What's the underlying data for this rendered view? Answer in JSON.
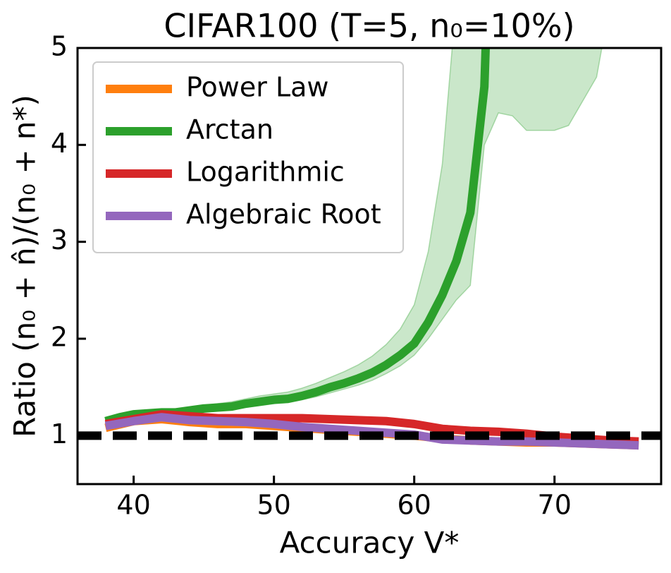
{
  "chart_data": {
    "type": "line",
    "title": "CIFAR100 (T=5, n₀=10%)",
    "xlabel": "Accuracy V*",
    "ylabel": "Ratio (n₀ + n̂)/(n₀ + n*)",
    "xlim": [
      36,
      77.6
    ],
    "ylim": [
      0.5,
      5
    ],
    "xticks": [
      40,
      50,
      60,
      70
    ],
    "yticks": [
      1,
      2,
      3,
      4,
      5
    ],
    "legend": "upper left",
    "hline": 1,
    "series": [
      {
        "name": "Power Law",
        "color": "#ff7f0e",
        "x": [
          38,
          40,
          42,
          44,
          46,
          48,
          50,
          52,
          54,
          56,
          58,
          60,
          62,
          64,
          66,
          68,
          70,
          72,
          74,
          76
        ],
        "values": [
          1.08,
          1.15,
          1.17,
          1.14,
          1.12,
          1.12,
          1.1,
          1.08,
          1.06,
          1.04,
          1.02,
          1.0,
          0.97,
          0.95,
          0.94,
          0.93,
          0.93,
          0.92,
          0.91,
          0.9
        ]
      },
      {
        "name": "Arctan",
        "color": "#2ca02c",
        "x": [
          38,
          39,
          40,
          41,
          42,
          43,
          44,
          45,
          46,
          47,
          48,
          49,
          50,
          51,
          52,
          53,
          54,
          55,
          56,
          57,
          58,
          59,
          60,
          61,
          62,
          63,
          64,
          65,
          66,
          67,
          68,
          69,
          70,
          71,
          72,
          73,
          74
        ],
        "values": [
          1.15,
          1.19,
          1.22,
          1.23,
          1.24,
          1.24,
          1.26,
          1.28,
          1.29,
          1.3,
          1.33,
          1.35,
          1.37,
          1.38,
          1.41,
          1.45,
          1.5,
          1.54,
          1.59,
          1.65,
          1.73,
          1.83,
          1.95,
          2.17,
          2.45,
          2.8,
          3.3,
          4.6,
          9,
          null,
          null,
          null,
          null,
          null,
          null,
          null,
          null
        ],
        "lower": [
          1.13,
          1.17,
          1.2,
          1.21,
          1.22,
          1.22,
          1.24,
          1.25,
          1.26,
          1.27,
          1.29,
          1.31,
          1.33,
          1.34,
          1.37,
          1.4,
          1.44,
          1.48,
          1.52,
          1.57,
          1.64,
          1.72,
          1.83,
          2.0,
          2.2,
          2.4,
          2.55,
          4.0,
          4.33,
          4.3,
          4.15,
          4.15,
          4.15,
          4.2,
          4.45,
          4.7,
          5.5
        ],
        "upper": [
          1.17,
          1.21,
          1.24,
          1.25,
          1.26,
          1.27,
          1.29,
          1.31,
          1.33,
          1.35,
          1.38,
          1.41,
          1.43,
          1.45,
          1.49,
          1.54,
          1.6,
          1.66,
          1.73,
          1.82,
          1.94,
          2.1,
          2.35,
          2.9,
          3.8,
          5.5,
          9,
          9,
          9,
          9,
          9,
          9,
          9,
          9,
          9,
          9,
          9
        ]
      },
      {
        "name": "Logarithmic",
        "color": "#d62728",
        "x": [
          38,
          40,
          42,
          44,
          46,
          48,
          50,
          52,
          54,
          56,
          58,
          60,
          62,
          64,
          66,
          68,
          70,
          72,
          74,
          76
        ],
        "values": [
          1.12,
          1.17,
          1.22,
          1.2,
          1.18,
          1.18,
          1.18,
          1.18,
          1.17,
          1.16,
          1.15,
          1.12,
          1.07,
          1.05,
          1.04,
          1.02,
          0.99,
          0.97,
          0.95,
          0.94
        ]
      },
      {
        "name": "Algebraic Root",
        "color": "#9467bd",
        "x": [
          38,
          40,
          42,
          44,
          46,
          48,
          50,
          52,
          54,
          56,
          58,
          60,
          62,
          64,
          66,
          68,
          70,
          72,
          74,
          76
        ],
        "values": [
          1.1,
          1.15,
          1.19,
          1.16,
          1.15,
          1.14,
          1.12,
          1.09,
          1.07,
          1.05,
          1.03,
          1.01,
          0.96,
          0.95,
          0.94,
          0.94,
          0.93,
          0.92,
          0.91,
          0.9
        ]
      }
    ]
  }
}
